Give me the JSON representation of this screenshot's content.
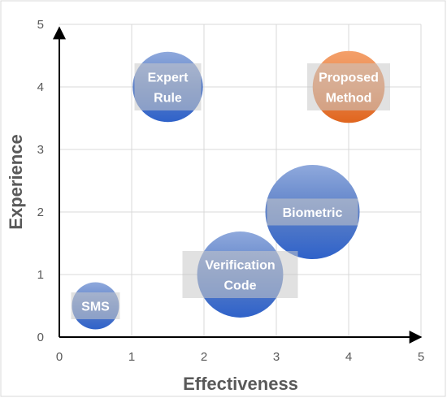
{
  "chart_data": {
    "type": "bubble",
    "xlabel": "Effectiveness",
    "ylabel": "Experience",
    "xlim": [
      0,
      5
    ],
    "ylim": [
      0,
      5
    ],
    "x_ticks": [
      "0",
      "1",
      "2",
      "3",
      "4",
      "5"
    ],
    "y_ticks": [
      "0",
      "1",
      "2",
      "3",
      "4",
      "5"
    ],
    "grid": true,
    "colors": {
      "default": "#4472C4",
      "highlight": "#ED7D31"
    },
    "points": [
      {
        "label": [
          "SMS"
        ],
        "x": 0.5,
        "y": 0.5,
        "size": 0.9,
        "color": "default"
      },
      {
        "label": [
          "Verification",
          "Code"
        ],
        "x": 2.5,
        "y": 1.0,
        "size": 3.0,
        "color": "default"
      },
      {
        "label": [
          "Biometric"
        ],
        "x": 3.5,
        "y": 2.0,
        "size": 3.6,
        "color": "default"
      },
      {
        "label": [
          "Expert",
          "Rule"
        ],
        "x": 1.5,
        "y": 4.0,
        "size": 2.0,
        "color": "default"
      },
      {
        "label": [
          "Proposed",
          "Method"
        ],
        "x": 4.0,
        "y": 4.0,
        "size": 2.1,
        "color": "highlight"
      }
    ]
  }
}
